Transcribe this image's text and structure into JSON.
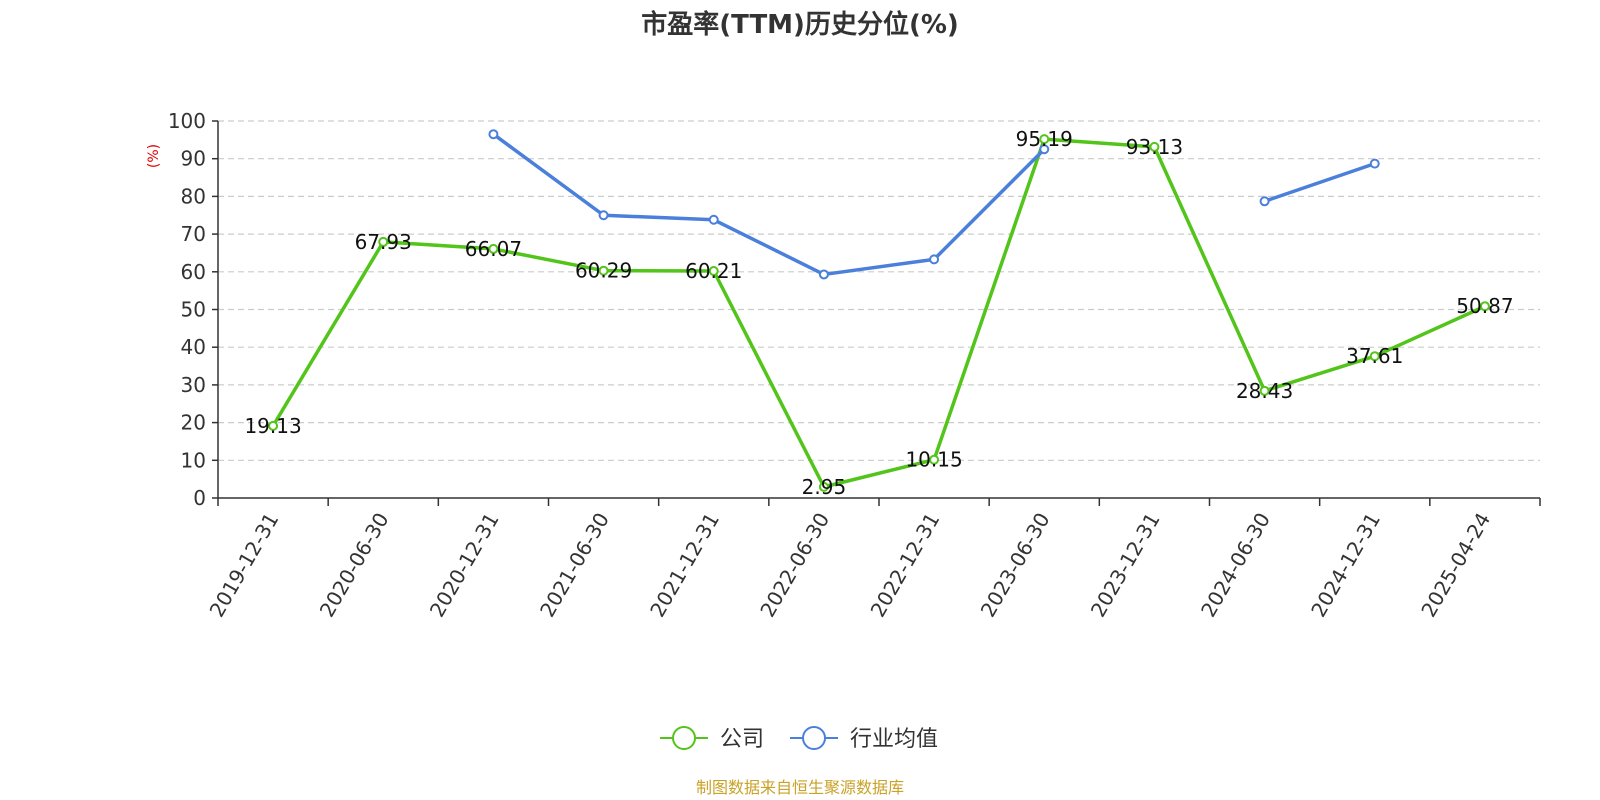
{
  "chart_data": {
    "type": "line",
    "title": "市盈率(TTM)历史分位(%)",
    "ylabel": "(%)",
    "xlabel": "",
    "ylim": [
      0,
      100
    ],
    "yticks": [
      "0",
      "10",
      "20",
      "30",
      "40",
      "50",
      "60",
      "70",
      "80",
      "90",
      "100"
    ],
    "categories": [
      "2019-12-31",
      "2020-06-30",
      "2020-12-31",
      "2021-06-30",
      "2021-12-31",
      "2022-06-30",
      "2022-12-31",
      "2023-06-30",
      "2023-12-31",
      "2024-06-30",
      "2024-12-31",
      "2025-04-24"
    ],
    "grid": true,
    "legend_position": "bottom-center",
    "series": [
      {
        "name": "公司",
        "color": "#52c41a",
        "values": [
          19.13,
          67.93,
          66.07,
          60.29,
          60.21,
          2.95,
          10.15,
          95.19,
          93.13,
          28.43,
          37.61,
          50.87
        ],
        "labels": [
          "19.13",
          "67.93",
          "66.07",
          "60.29",
          "60.21",
          "2.95",
          "10.15",
          "95.19",
          "93.13",
          "28.43",
          "37.61",
          "50.87"
        ]
      },
      {
        "name": "行业均值",
        "color": "#4a7fdb",
        "values": [
          null,
          null,
          96.5,
          75.0,
          73.8,
          59.3,
          63.3,
          92.5,
          null,
          78.7,
          88.7,
          null
        ]
      }
    ]
  },
  "source": {
    "text": "制图数据来自恒生聚源数据库",
    "color": "#c9a227"
  },
  "unit_color": "#e00000"
}
